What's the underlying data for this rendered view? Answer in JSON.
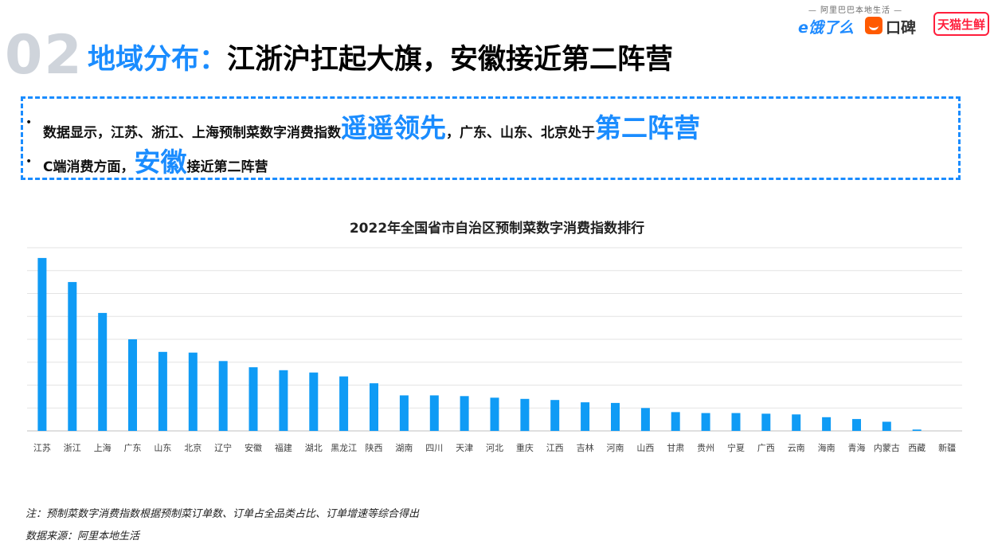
{
  "brand": {
    "tagline": "— 阿里巴巴本地生活 —",
    "eleme": "e饿了么",
    "koubei": "口碑",
    "tmall": "天猫生鲜"
  },
  "header": {
    "section_number": "02",
    "title_prefix": "地域分布：",
    "title_main": "江浙沪扛起大旗，安徽接近第二阵营"
  },
  "callout": {
    "bullet1": {
      "text_a": "数据显示，江苏、浙江、上海预制菜数字消费指数",
      "highlight_a": "遥遥领先",
      "text_b": "，广东、山东、北京处于",
      "highlight_b": "第二阵营"
    },
    "bullet2": {
      "text_a": "C端消费方面，",
      "highlight_a": "安徽",
      "text_b": "接近第二阵营"
    },
    "bullet_symbol": "•"
  },
  "chart_data": {
    "type": "bar",
    "title": "2022年全国省市自治区预制菜数字消费指数排行",
    "xlabel": "",
    "ylabel": "",
    "ylim": [
      0,
      8
    ],
    "grid": true,
    "bar_color": "#0f9bf5",
    "categories": [
      "江苏",
      "浙江",
      "上海",
      "广东",
      "山东",
      "北京",
      "辽宁",
      "安徽",
      "福建",
      "湖北",
      "黑龙江",
      "陕西",
      "湖南",
      "四川",
      "天津",
      "河北",
      "重庆",
      "江西",
      "吉林",
      "河南",
      "山西",
      "甘肃",
      "贵州",
      "宁夏",
      "广西",
      "云南",
      "海南",
      "青海",
      "内蒙古",
      "西藏",
      "新疆"
    ],
    "values": [
      7.55,
      6.5,
      5.15,
      4.0,
      3.45,
      3.42,
      3.05,
      2.78,
      2.65,
      2.55,
      2.38,
      2.08,
      1.55,
      1.55,
      1.52,
      1.45,
      1.4,
      1.35,
      1.25,
      1.22,
      1.0,
      0.82,
      0.78,
      0.78,
      0.75,
      0.72,
      0.6,
      0.52,
      0.4,
      0.06,
      0.0
    ]
  },
  "notes": {
    "note": "注：预制菜数字消费指数根据预制菜订单数、订单占全品类占比、订单增速等综合得出",
    "source": "数据来源：阿里本地生活"
  }
}
